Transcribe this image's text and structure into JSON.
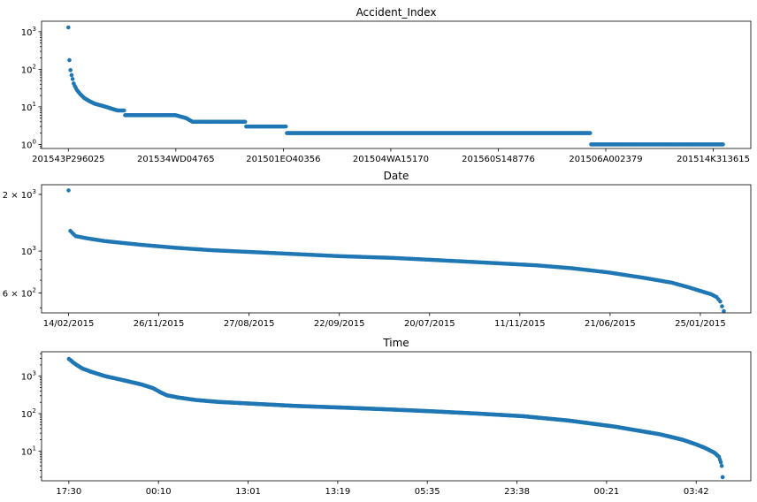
{
  "chart_data": [
    {
      "type": "scatter",
      "title": "Accident_Index",
      "xlabel": "",
      "ylabel": "",
      "yscale": "log",
      "ylim": [
        0.78,
        1900
      ],
      "grid": false,
      "color": "#1f77b4",
      "xtick_labels": [
        "201543P296025",
        "201534WD04765",
        "201501EO40356",
        "201504WA15170",
        "201560S148776",
        "201506A002379",
        "201514K313615"
      ],
      "ytick_labels": [
        {
          "value": 1,
          "base": "10",
          "exp": "0"
        },
        {
          "value": 10,
          "base": "10",
          "exp": "1"
        },
        {
          "value": 100,
          "base": "10",
          "exp": "2"
        },
        {
          "value": 1000,
          "base": "10",
          "exp": "3"
        }
      ],
      "n_points": 612,
      "xlim": [
        -25,
        637
      ],
      "profile": [
        [
          0,
          1300
        ],
        [
          1,
          175
        ],
        [
          2,
          95
        ],
        [
          3,
          70
        ],
        [
          4,
          55
        ],
        [
          5,
          42
        ],
        [
          6,
          36
        ],
        [
          8,
          28
        ],
        [
          11,
          22
        ],
        [
          15,
          17
        ],
        [
          20,
          14
        ],
        [
          25,
          12
        ],
        [
          30,
          11
        ],
        [
          35,
          10
        ],
        [
          40,
          9
        ],
        [
          46,
          8
        ],
        [
          52,
          8
        ],
        [
          53,
          6
        ],
        [
          100,
          6
        ],
        [
          110,
          5
        ],
        [
          116,
          4
        ],
        [
          165,
          4
        ],
        [
          166,
          3
        ],
        [
          203,
          3
        ],
        [
          204,
          2
        ],
        [
          487,
          2
        ],
        [
          488,
          1
        ],
        [
          611,
          1
        ]
      ]
    },
    {
      "type": "scatter",
      "title": "Date",
      "xlabel": "",
      "ylabel": "",
      "yscale": "log",
      "ylim": [
        470,
        2250
      ],
      "grid": false,
      "color": "#1f77b4",
      "xtick_labels": [
        "14/02/2015",
        "26/11/2015",
        "27/08/2015",
        "22/09/2015",
        "20/07/2015",
        "11/11/2015",
        "21/06/2015",
        "25/01/2015"
      ],
      "ytick_labels": [
        {
          "value": 600,
          "base": "6 × 10",
          "exp": "2"
        },
        {
          "value": 1000,
          "base": "10",
          "exp": "3"
        },
        {
          "value": 2000,
          "base": "2 × 10",
          "exp": "3"
        }
      ],
      "n_points": 365,
      "xlim": [
        -15,
        379
      ],
      "profile": [
        [
          0,
          2100
        ],
        [
          1,
          1280
        ],
        [
          2,
          1250
        ],
        [
          4,
          1200
        ],
        [
          10,
          1170
        ],
        [
          20,
          1130
        ],
        [
          40,
          1080
        ],
        [
          60,
          1040
        ],
        [
          80,
          1010
        ],
        [
          100,
          990
        ],
        [
          120,
          970
        ],
        [
          150,
          940
        ],
        [
          180,
          920
        ],
        [
          200,
          900
        ],
        [
          220,
          880
        ],
        [
          240,
          860
        ],
        [
          260,
          840
        ],
        [
          280,
          810
        ],
        [
          300,
          770
        ],
        [
          320,
          720
        ],
        [
          335,
          680
        ],
        [
          345,
          640
        ],
        [
          352,
          610
        ],
        [
          357,
          590
        ],
        [
          360,
          570
        ],
        [
          362,
          540
        ],
        [
          364,
          480
        ]
      ]
    },
    {
      "type": "scatter",
      "title": "Time",
      "xlabel": "",
      "ylabel": "",
      "yscale": "log",
      "ylim": [
        1.6,
        4500
      ],
      "grid": false,
      "color": "#1f77b4",
      "xtick_labels": [
        "17:30",
        "00:10",
        "13:01",
        "13:19",
        "05:35",
        "23:38",
        "00:21",
        "03:42"
      ],
      "ytick_labels": [
        {
          "value": 10,
          "base": "10",
          "exp": "1"
        },
        {
          "value": 100,
          "base": "10",
          "exp": "2"
        },
        {
          "value": 1000,
          "base": "10",
          "exp": "3"
        }
      ],
      "n_points": 1439,
      "xlim": [
        -60,
        1500
      ],
      "profile": [
        [
          0,
          2900
        ],
        [
          5,
          2600
        ],
        [
          10,
          2300
        ],
        [
          20,
          1900
        ],
        [
          30,
          1600
        ],
        [
          50,
          1300
        ],
        [
          80,
          1000
        ],
        [
          120,
          780
        ],
        [
          160,
          600
        ],
        [
          185,
          480
        ],
        [
          200,
          380
        ],
        [
          215,
          310
        ],
        [
          240,
          270
        ],
        [
          280,
          230
        ],
        [
          330,
          205
        ],
        [
          400,
          185
        ],
        [
          500,
          160
        ],
        [
          600,
          145
        ],
        [
          700,
          130
        ],
        [
          800,
          115
        ],
        [
          900,
          100
        ],
        [
          1000,
          85
        ],
        [
          1100,
          65
        ],
        [
          1200,
          45
        ],
        [
          1300,
          28
        ],
        [
          1350,
          20
        ],
        [
          1380,
          15
        ],
        [
          1400,
          12
        ],
        [
          1420,
          9
        ],
        [
          1430,
          7
        ],
        [
          1434,
          5
        ],
        [
          1436,
          4
        ],
        [
          1437,
          3
        ],
        [
          1438,
          2
        ]
      ]
    }
  ]
}
